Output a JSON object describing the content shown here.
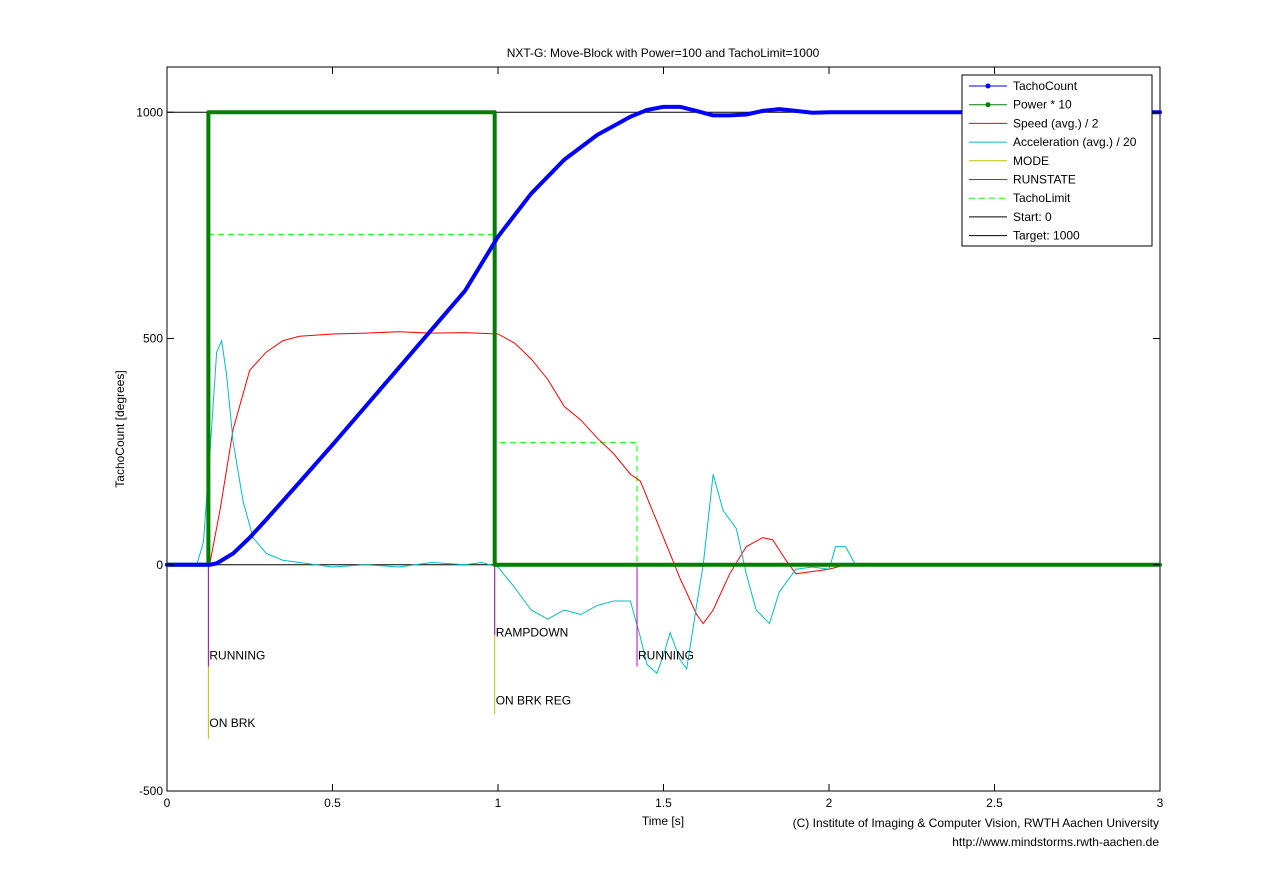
{
  "chart_data": {
    "type": "line",
    "title": "NXT-G: Move-Block with Power=100 and TachoLimit=1000",
    "xlabel": "Time [s]",
    "ylabel": "TachoCount [degrees]",
    "xlim": [
      0,
      3
    ],
    "ylim": [
      -500,
      1100
    ],
    "xticks": [
      0,
      0.5,
      1,
      1.5,
      2,
      2.5,
      3
    ],
    "xtick_labels": [
      "0",
      "0.5",
      "1",
      "1.5",
      "2",
      "2.5",
      "3"
    ],
    "yticks": [
      -500,
      0,
      500,
      1000
    ],
    "ytick_labels": [
      "-500",
      "0",
      "500",
      "1000"
    ],
    "grid": false,
    "legend_position": "top-right",
    "colors": {
      "tacho": "#0000ff",
      "power": "#007f00",
      "speed": "#ff0000",
      "accel": "#00bfbf",
      "mode": "#bfbf00",
      "runstate": "#bf00bf",
      "limit": "#00ff00",
      "ref": "#000000"
    },
    "series": [
      {
        "name": "TachoCount",
        "color": "#0000ff",
        "style": "thick-dots",
        "x": [
          0,
          0.13,
          0.15,
          0.2,
          0.25,
          0.3,
          0.4,
          0.5,
          0.6,
          0.7,
          0.8,
          0.9,
          1.0,
          1.1,
          1.2,
          1.3,
          1.4,
          1.45,
          1.5,
          1.55,
          1.6,
          1.65,
          1.7,
          1.75,
          1.8,
          1.85,
          1.9,
          1.95,
          2.0,
          2.1,
          3.0
        ],
        "y": [
          0,
          0,
          3,
          25,
          60,
          100,
          182,
          265,
          350,
          435,
          520,
          605,
          725,
          820,
          895,
          950,
          990,
          1005,
          1012,
          1012,
          1003,
          993,
          993,
          995,
          1003,
          1007,
          1003,
          999,
          1000,
          1000,
          1000
        ]
      },
      {
        "name": "Power * 10",
        "color": "#007f00",
        "style": "thick-dots",
        "x": [
          0,
          0.125,
          0.125,
          0.99,
          0.99,
          3.0
        ],
        "y": [
          0,
          0,
          1000,
          1000,
          0,
          0
        ]
      },
      {
        "name": "Speed (avg.) / 2",
        "color": "#ff0000",
        "style": "line",
        "x": [
          0.1,
          0.13,
          0.16,
          0.2,
          0.25,
          0.3,
          0.35,
          0.4,
          0.5,
          0.6,
          0.7,
          0.8,
          0.9,
          1.0,
          1.05,
          1.1,
          1.15,
          1.2,
          1.25,
          1.3,
          1.35,
          1.4,
          1.43,
          1.5,
          1.55,
          1.6,
          1.62,
          1.65,
          1.7,
          1.75,
          1.8,
          1.83,
          1.87,
          1.9,
          1.95,
          2.0,
          2.05
        ],
        "y": [
          0,
          5,
          120,
          300,
          430,
          470,
          495,
          505,
          510,
          512,
          515,
          512,
          513,
          510,
          490,
          455,
          410,
          350,
          320,
          280,
          245,
          200,
          185,
          60,
          -30,
          -110,
          -130,
          -100,
          -20,
          40,
          60,
          55,
          10,
          -20,
          -15,
          -10,
          0
        ]
      },
      {
        "name": "Acceleration (avg.) / 20",
        "color": "#00bfbf",
        "style": "line",
        "x": [
          0.05,
          0.09,
          0.11,
          0.13,
          0.15,
          0.165,
          0.18,
          0.2,
          0.23,
          0.26,
          0.3,
          0.35,
          0.4,
          0.5,
          0.6,
          0.7,
          0.8,
          0.9,
          0.95,
          1.0,
          1.05,
          1.1,
          1.15,
          1.2,
          1.25,
          1.3,
          1.35,
          1.4,
          1.43,
          1.45,
          1.48,
          1.5,
          1.52,
          1.55,
          1.57,
          1.6,
          1.62,
          1.65,
          1.68,
          1.72,
          1.75,
          1.78,
          1.82,
          1.85,
          1.87,
          1.9,
          1.95,
          2.0,
          2.02,
          2.05,
          2.08
        ],
        "y": [
          0,
          0,
          50,
          250,
          470,
          495,
          420,
          270,
          140,
          60,
          25,
          10,
          5,
          -5,
          0,
          -5,
          5,
          0,
          5,
          -5,
          -50,
          -100,
          -120,
          -100,
          -110,
          -90,
          -80,
          -80,
          -160,
          -220,
          -240,
          -200,
          -150,
          -210,
          -230,
          -90,
          0,
          200,
          120,
          80,
          -20,
          -100,
          -130,
          -60,
          -40,
          -10,
          -5,
          -10,
          40,
          40,
          0
        ]
      },
      {
        "name": "MODE",
        "color": "#bfbf00",
        "style": "line",
        "x": [
          0.125,
          0.125,
          0.99,
          0.99
        ],
        "y": [
          0,
          -385,
          0,
          -330
        ]
      },
      {
        "name": "RUNSTATE",
        "color": "#bf00bf",
        "style": "line",
        "x": [
          0.125,
          0.125,
          0.99,
          0.99,
          1.42,
          1.42
        ],
        "y": [
          0,
          -225,
          0,
          -155,
          0,
          -225
        ]
      },
      {
        "name": "TachoLimit",
        "color": "#00ff00",
        "style": "dashed",
        "x": [
          0.125,
          0.125,
          0.99,
          0.99,
          1.42,
          1.42
        ],
        "y": [
          0,
          730,
          730,
          270,
          270,
          0
        ]
      },
      {
        "name": "Start: 0",
        "color": "#000000",
        "style": "line",
        "x": [
          0,
          3
        ],
        "y": [
          0,
          0
        ]
      },
      {
        "name": "Target: 1000",
        "color": "#000000",
        "style": "line",
        "x": [
          0,
          3
        ],
        "y": [
          1000,
          1000
        ]
      }
    ],
    "legend": [
      "TachoCount",
      "Power * 10",
      "Speed (avg.) / 2",
      "Acceleration (avg.) / 20",
      "MODE",
      "RUNSTATE",
      "TachoLimit",
      "Start: 0",
      "Target: 1000"
    ],
    "annotations": [
      {
        "text": "RUNNING",
        "x": 0.125,
        "y": -200,
        "color": "#bf00bf"
      },
      {
        "text": "ON BRK",
        "x": 0.125,
        "y": -350,
        "color": "#bfbf00"
      },
      {
        "text": "RAMPDOWN",
        "x": 0.99,
        "y": -150,
        "color": "#bf00bf"
      },
      {
        "text": "ON BRK REG",
        "x": 0.99,
        "y": -300,
        "color": "#bfbf00"
      },
      {
        "text": "RUNNING",
        "x": 1.42,
        "y": -200,
        "color": "#bf00bf"
      }
    ]
  },
  "credits": {
    "line1": "(C) Institute of Imaging & Computer Vision, RWTH Aachen University",
    "line2": "http://www.mindstorms.rwth-aachen.de"
  }
}
